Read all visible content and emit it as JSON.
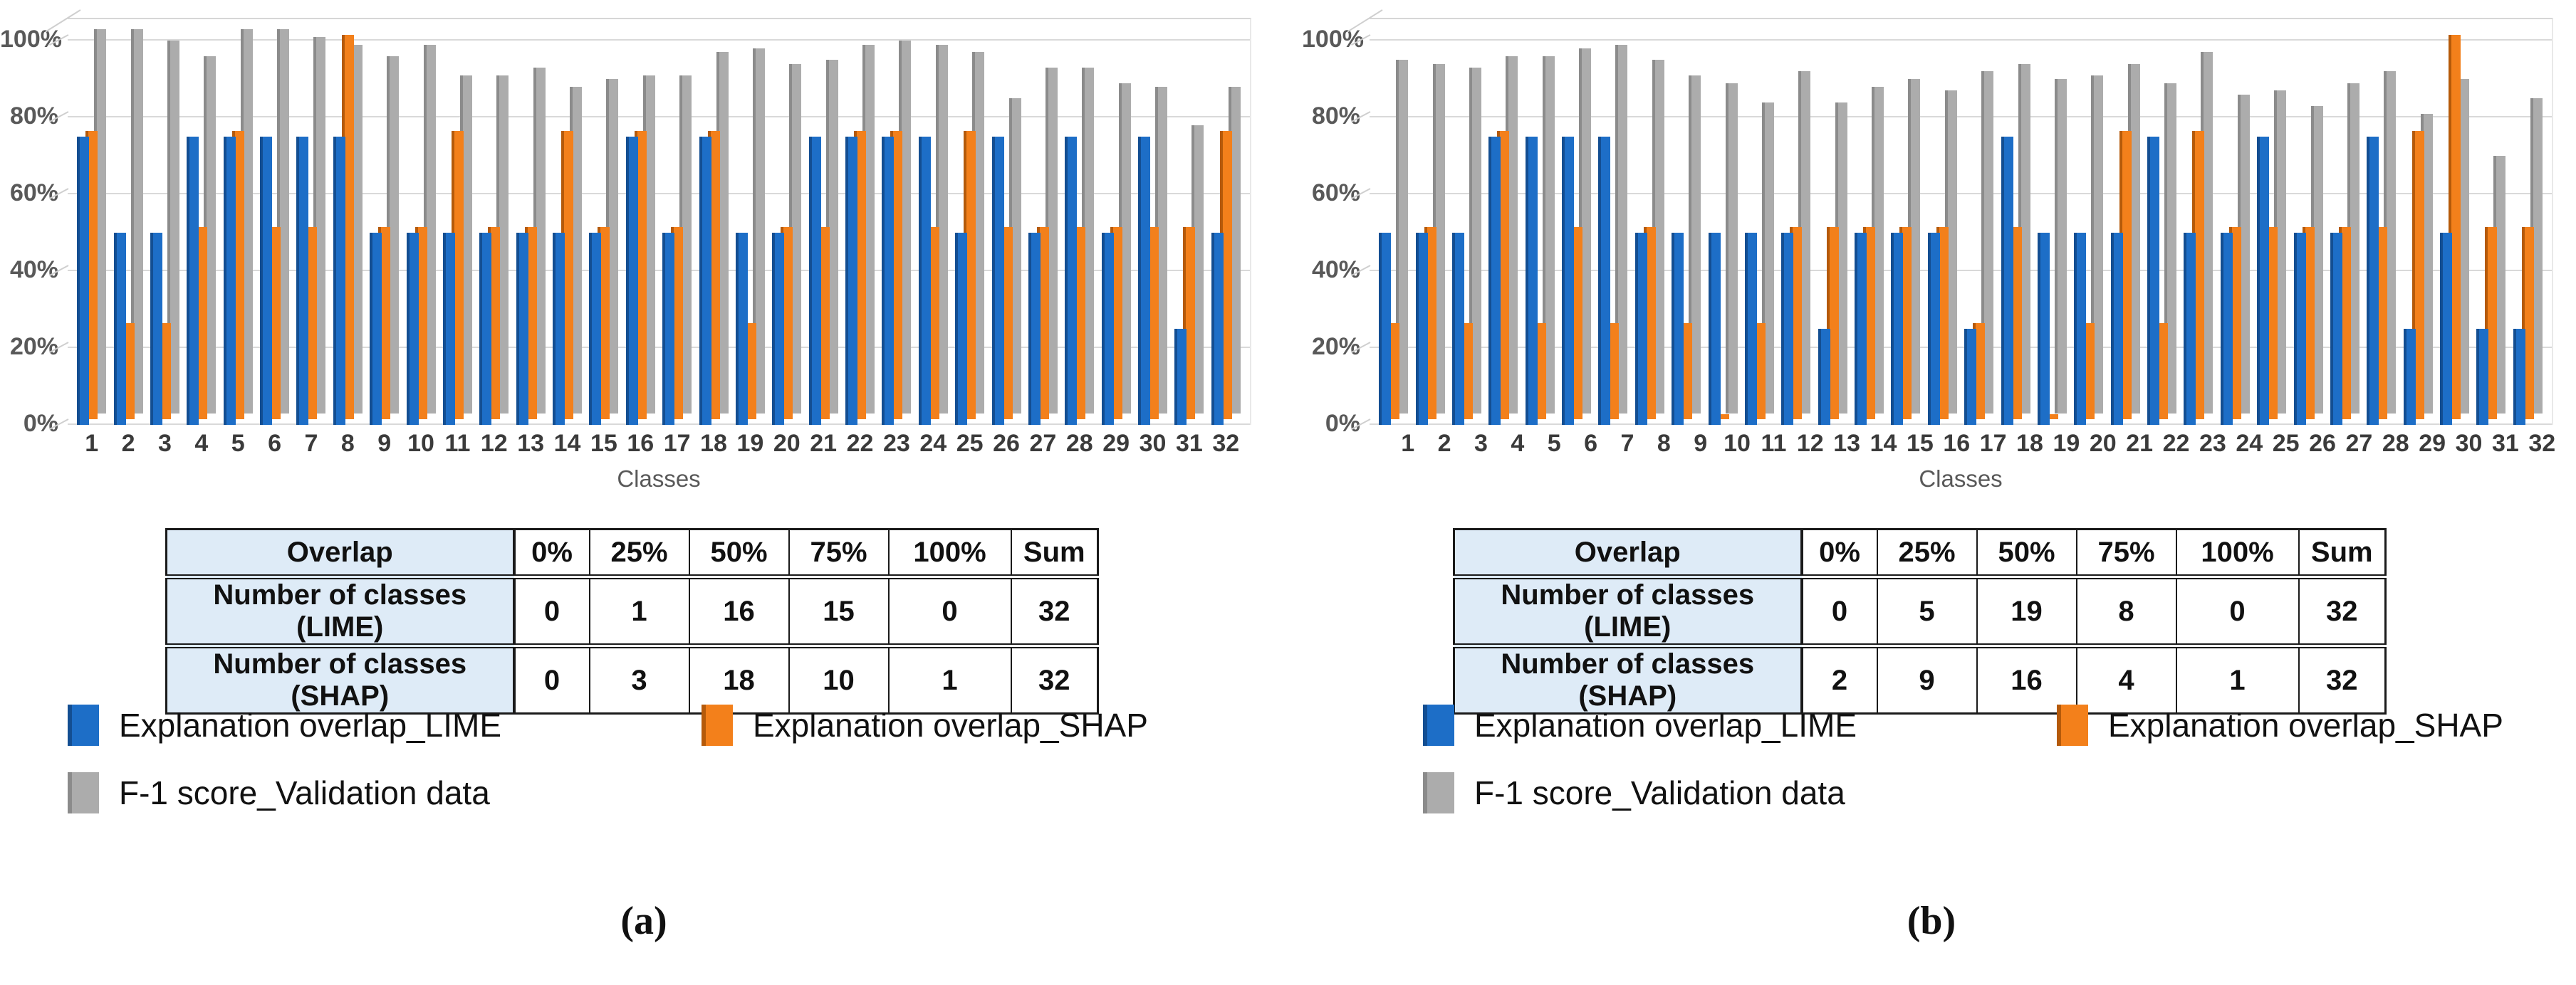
{
  "figure": {
    "y_ticks": [
      "100%",
      "80%",
      "60%",
      "40%",
      "20%",
      "0%"
    ],
    "x_axis_title": "Classes",
    "legend": {
      "lime": "Explanation overlap_LIME",
      "shap": "Explanation overlap_SHAP",
      "f1": "F-1 score_Validation data"
    },
    "colors": {
      "lime": "#1d6ec7",
      "lime_edge": "#134e92",
      "shap": "#f3801b",
      "shap_edge": "#b55a0a",
      "f1": "#acacac",
      "f1_edge": "#8b8b8b",
      "gridline": "#d9d9d9",
      "table_header_bg": "#deebf7"
    }
  },
  "chart_data": [
    {
      "type": "bar",
      "bar_style": "3d-grouped",
      "title": "",
      "xlabel": "Classes",
      "ylabel": "",
      "ylim": [
        0,
        100
      ],
      "yticks": [
        "0%",
        "20%",
        "40%",
        "60%",
        "80%",
        "100%"
      ],
      "grid": true,
      "legend_position": "bottom",
      "categories": [
        1,
        2,
        3,
        4,
        5,
        6,
        7,
        8,
        9,
        10,
        11,
        12,
        13,
        14,
        15,
        16,
        17,
        18,
        19,
        20,
        21,
        22,
        23,
        24,
        25,
        26,
        27,
        28,
        29,
        30,
        31,
        32
      ],
      "series": [
        {
          "key": "lime",
          "name": "Explanation overlap_LIME",
          "color": "#1d6ec7",
          "edge": "#134e92",
          "values": [
            75,
            50,
            50,
            75,
            75,
            75,
            75,
            75,
            50,
            50,
            50,
            50,
            50,
            50,
            50,
            75,
            50,
            75,
            50,
            50,
            75,
            75,
            75,
            75,
            50,
            75,
            50,
            75,
            50,
            75,
            25,
            50
          ]
        },
        {
          "key": "shap",
          "name": "Explanation overlap_SHAP",
          "color": "#f3801b",
          "edge": "#b55a0a",
          "values": [
            75,
            25,
            25,
            50,
            75,
            50,
            50,
            100,
            50,
            50,
            75,
            50,
            50,
            75,
            50,
            75,
            50,
            75,
            25,
            50,
            50,
            75,
            75,
            50,
            75,
            50,
            50,
            50,
            50,
            50,
            50,
            75
          ]
        },
        {
          "key": "f1",
          "name": "F-1 score_Validation data",
          "color": "#acacac",
          "edge": "#8b8b8b",
          "values": [
            100,
            100,
            97,
            93,
            100,
            100,
            98,
            96,
            93,
            96,
            88,
            88,
            90,
            85,
            87,
            88,
            88,
            94,
            95,
            91,
            92,
            96,
            97,
            96,
            94,
            82,
            90,
            90,
            86,
            85,
            75,
            85
          ]
        }
      ]
    },
    {
      "type": "bar",
      "bar_style": "3d-grouped",
      "title": "",
      "xlabel": "Classes",
      "ylabel": "",
      "ylim": [
        0,
        100
      ],
      "yticks": [
        "0%",
        "20%",
        "40%",
        "60%",
        "80%",
        "100%"
      ],
      "grid": true,
      "legend_position": "bottom",
      "categories": [
        1,
        2,
        3,
        4,
        5,
        6,
        7,
        8,
        9,
        10,
        11,
        12,
        13,
        14,
        15,
        16,
        17,
        18,
        19,
        20,
        21,
        22,
        23,
        24,
        25,
        26,
        27,
        28,
        29,
        30,
        31,
        32
      ],
      "series": [
        {
          "key": "lime",
          "name": "Explanation overlap_LIME",
          "color": "#1d6ec7",
          "edge": "#134e92",
          "values": [
            50,
            50,
            50,
            75,
            75,
            75,
            75,
            50,
            50,
            50,
            50,
            50,
            25,
            50,
            50,
            50,
            25,
            75,
            50,
            50,
            50,
            75,
            50,
            50,
            75,
            50,
            50,
            75,
            25,
            50,
            25,
            25
          ]
        },
        {
          "key": "shap",
          "name": "Explanation overlap_SHAP",
          "color": "#f3801b",
          "edge": "#b55a0a",
          "values": [
            25,
            50,
            25,
            75,
            25,
            50,
            25,
            50,
            25,
            0,
            25,
            50,
            50,
            50,
            50,
            50,
            25,
            50,
            0,
            25,
            75,
            25,
            75,
            50,
            50,
            50,
            50,
            50,
            75,
            100,
            50,
            50
          ]
        },
        {
          "key": "f1",
          "name": "F-1 score_Validation data",
          "color": "#acacac",
          "edge": "#8b8b8b",
          "values": [
            92,
            91,
            90,
            93,
            93,
            95,
            96,
            92,
            88,
            86,
            81,
            89,
            81,
            85,
            87,
            84,
            89,
            91,
            87,
            88,
            91,
            86,
            94,
            83,
            84,
            80,
            86,
            89,
            78,
            87,
            67,
            82
          ]
        }
      ]
    }
  ],
  "panels": [
    {
      "caption": "(a)",
      "table": {
        "headers": [
          "Overlap",
          "0%",
          "25%",
          "50%",
          "75%",
          "100%",
          "Sum"
        ],
        "rows": [
          {
            "label": "Number of classes (LIME)",
            "values": [
              "0",
              "1",
              "16",
              "15",
              "0",
              "32"
            ]
          },
          {
            "label": "Number of classes (SHAP)",
            "values": [
              "0",
              "3",
              "18",
              "10",
              "1",
              "32"
            ]
          }
        ]
      }
    },
    {
      "caption": "(b)",
      "table": {
        "headers": [
          "Overlap",
          "0%",
          "25%",
          "50%",
          "75%",
          "100%",
          "Sum"
        ],
        "rows": [
          {
            "label": "Number of classes (LIME)",
            "values": [
              "0",
              "5",
              "19",
              "8",
              "0",
              "32"
            ]
          },
          {
            "label": "Number of classes (SHAP)",
            "values": [
              "2",
              "9",
              "16",
              "4",
              "1",
              "32"
            ]
          }
        ]
      }
    }
  ]
}
